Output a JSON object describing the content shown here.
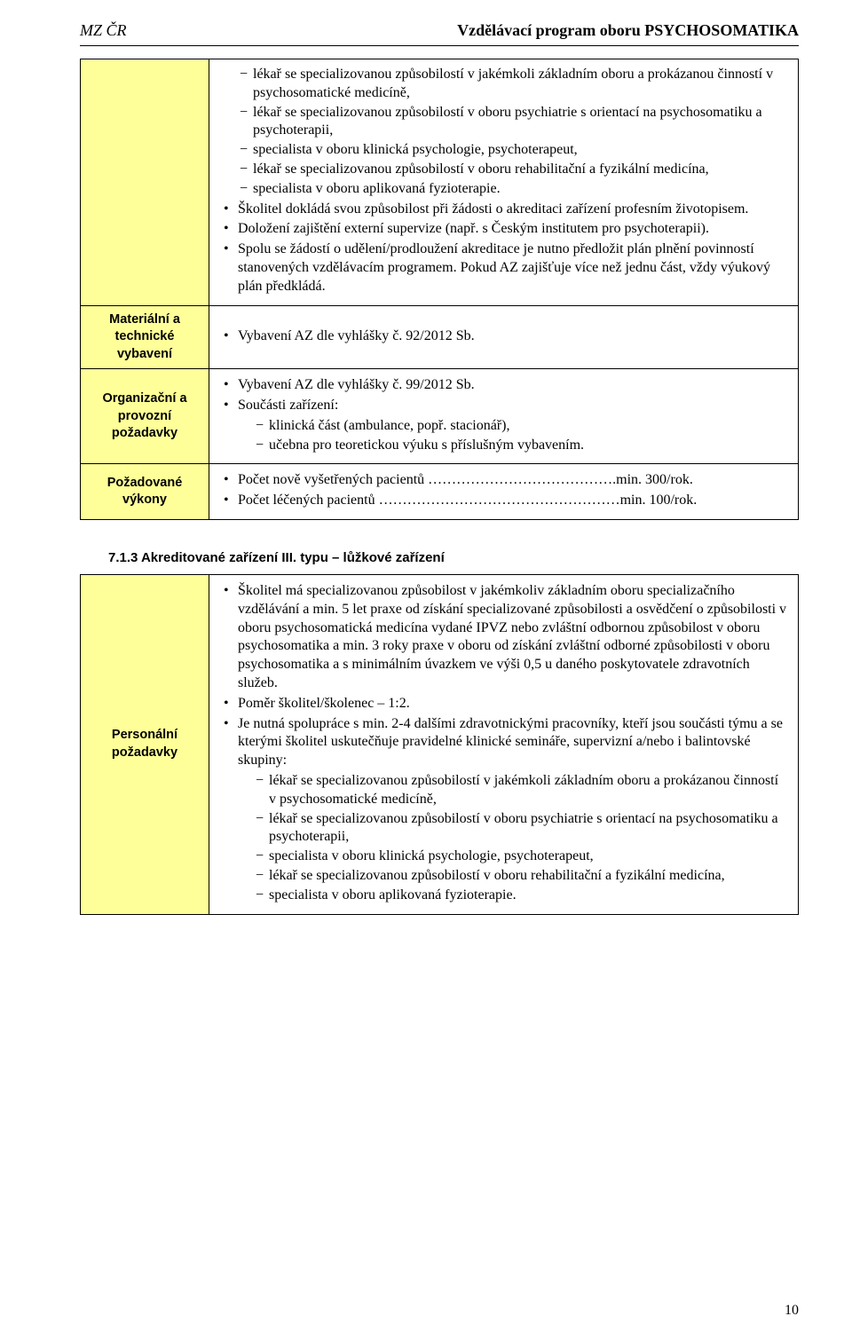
{
  "header": {
    "left": "MZ ČR",
    "right": "Vzdělávací program oboru PSYCHOSOMATIKA"
  },
  "table1": {
    "firstCell": {
      "sublist": [
        "lékař se specializovanou způsobilostí v jakémkoli základním oboru a prokázanou činností v psychosomatické medicíně,",
        "lékař se specializovanou způsobilostí v oboru psychiatrie s orientací na psychosomatiku a psychoterapii,",
        "specialista v oboru klinická psychologie, psychoterapeut,",
        "lékař se specializovanou způsobilostí v oboru rehabilitační a fyzikální medicína,",
        "specialista v oboru aplikovaná fyzioterapie."
      ],
      "outer": [
        "Školitel dokládá svou způsobilost při žádosti o akreditaci zařízení profesním životopisem.",
        "Doložení zajištění externí supervize (např. s Českým institutem pro psychoterapii).",
        "Spolu se žádostí o udělení/prodloužení akreditace je nutno předložit plán plnění povinností stanovených vzdělávacím programem. Pokud AZ zajišťuje více než jednu část, vždy výukový plán předkládá."
      ]
    },
    "rowMaterial": {
      "label": "Materiální a technické vybavení",
      "items": [
        "Vybavení AZ dle vyhlášky č. 92/2012 Sb."
      ]
    },
    "rowOrg": {
      "label": "Organizační a provozní požadavky",
      "items": [
        "Vybavení AZ dle vyhlášky č. 99/2012 Sb.",
        "Součásti zařízení:"
      ],
      "subitems": [
        "klinická část (ambulance, popř. stacionář),",
        "učebna pro teoretickou výuku s příslušným vybavením."
      ]
    },
    "rowVykon": {
      "label": "Požadované výkony",
      "items": [
        "Počet nově vyšetřených pacientů ………………………………….min. 300/rok.",
        "Počet léčených pacientů ……………………………………………min. 100/rok."
      ]
    }
  },
  "section": {
    "heading": "7.1.3   Akreditované zařízení III. typu – lůžkové zařízení"
  },
  "table2": {
    "rowPers": {
      "label": "Personální požadavky",
      "items": [
        "Školitel má specializovanou způsobilost v jakémkoliv základním oboru specializačního vzdělávání a min. 5 let praxe od získání specializované způsobilosti a osvědčení o způsobilosti v oboru psychosomatická medicína vydané IPVZ nebo zvláštní odbornou způsobilost v oboru psychosomatika a min. 3 roky praxe v oboru od získání zvláštní odborné způsobilosti v oboru psychosomatika a s minimálním úvazkem ve výši 0,5 u daného poskytovatele zdravotních služeb.",
        "Poměr školitel/školenec – 1:2.",
        "Je nutná spolupráce s min. 2-4 dalšími zdravotnickými pracovníky, kteří jsou součásti týmu a se kterými školitel uskutečňuje pravidelné klinické semináře, supervizní a/nebo i balintovské skupiny:"
      ],
      "subitems": [
        "lékař se specializovanou způsobilostí v jakémkoli základním oboru a prokázanou činností v psychosomatické medicíně,",
        "lékař se specializovanou způsobilostí v oboru psychiatrie s orientací na psychosomatiku a psychoterapii,",
        "specialista v oboru klinická psychologie, psychoterapeut,",
        "lékař se specializovanou způsobilostí v oboru rehabilitační a fyzikální medicína,",
        "specialista v oboru aplikovaná fyzioterapie."
      ]
    }
  },
  "pageNumber": "10"
}
